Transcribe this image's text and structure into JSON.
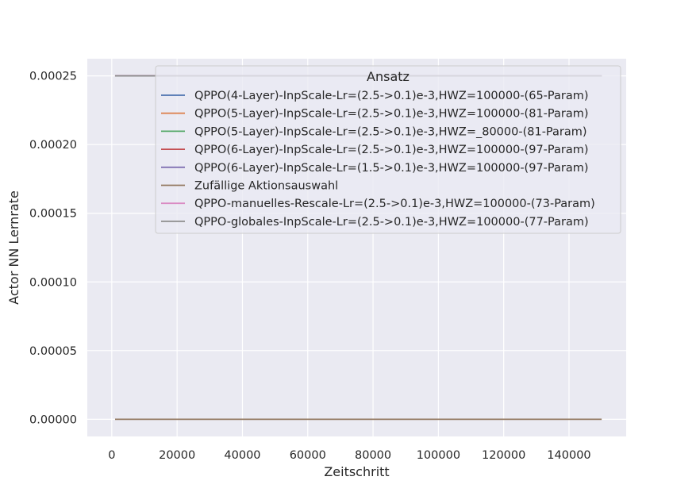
{
  "chart_data": {
    "type": "line",
    "title": "",
    "xlabel": "Zeitschritt",
    "ylabel": "Actor NN Lernrate",
    "xlim": [
      -7500,
      157500
    ],
    "ylim": [
      -1.25e-05,
      0.0002625
    ],
    "xticks": [
      0,
      20000,
      40000,
      60000,
      80000,
      100000,
      120000,
      140000
    ],
    "xtick_labels": [
      "0",
      "20000",
      "40000",
      "60000",
      "80000",
      "100000",
      "120000",
      "140000"
    ],
    "yticks": [
      0.0,
      5e-05,
      0.0001,
      0.00015,
      0.0002,
      0.00025
    ],
    "ytick_labels": [
      "0.00000",
      "0.00005",
      "0.00010",
      "0.00015",
      "0.00020",
      "0.00025"
    ],
    "grid": true,
    "legend_title": "Ansatz",
    "legend_position": "top-right",
    "series": [
      {
        "name": "QPPO(4-Layer)-InpScale-Lr=(2.5->0.1)e-3,HWZ=100000-(65-Param)",
        "color": "#4c72b0",
        "x": [
          1000,
          150000
        ],
        "y": [
          0.00025,
          0.00025
        ]
      },
      {
        "name": "QPPO(5-Layer)-InpScale-Lr=(2.5->0.1)e-3,HWZ=100000-(81-Param)",
        "color": "#dd8452",
        "x": [
          1000,
          150000
        ],
        "y": [
          0.00025,
          0.00025
        ]
      },
      {
        "name": "QPPO(5-Layer)-InpScale-Lr=(2.5->0.1)e-3,HWZ=_80000-(81-Param)",
        "color": "#55a868",
        "x": [
          1000,
          150000
        ],
        "y": [
          0.00025,
          0.00025
        ]
      },
      {
        "name": "QPPO(6-Layer)-InpScale-Lr=(2.5->0.1)e-3,HWZ=100000-(97-Param)",
        "color": "#c44e52",
        "x": [
          1000,
          150000
        ],
        "y": [
          0.00025,
          0.00025
        ]
      },
      {
        "name": "QPPO(6-Layer)-InpScale-Lr=(1.5->0.1)e-3,HWZ=100000-(97-Param)",
        "color": "#8172b3",
        "x": [
          1000,
          150000
        ],
        "y": [
          0.00025,
          0.00025
        ]
      },
      {
        "name": "Zufällige Aktionsauswahl",
        "color": "#937860",
        "x": [
          1000,
          150000
        ],
        "y": [
          0.0,
          0.0
        ]
      },
      {
        "name": "QPPO-manuelles-Rescale-Lr=(2.5->0.1)e-3,HWZ=100000-(73-Param)",
        "color": "#da8bc3",
        "x": [
          1000,
          150000
        ],
        "y": [
          0.00025,
          0.00025
        ]
      },
      {
        "name": "QPPO-globales-InpScale-Lr=(2.5->0.1)e-3,HWZ=100000-(77-Param)",
        "color": "#8c8c8c",
        "x": [
          1000,
          150000
        ],
        "y": [
          0.00025,
          0.00025
        ]
      }
    ]
  }
}
